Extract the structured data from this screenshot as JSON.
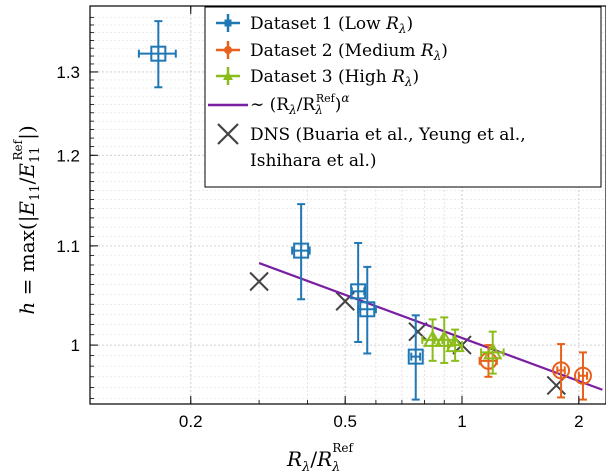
{
  "chart_data": {
    "type": "scatter",
    "xscale": "log",
    "yscale": "log",
    "xlim": [
      0.11,
      2.35
    ],
    "ylim": [
      0.945,
      1.385
    ],
    "xticks": [
      {
        "value": 0.2,
        "label": "0.2"
      },
      {
        "value": 0.5,
        "label": "0.5"
      },
      {
        "value": 1,
        "label": "1"
      },
      {
        "value": 2,
        "label": "2"
      }
    ],
    "yticks": [
      {
        "value": 1,
        "label": "1"
      },
      {
        "value": 1.1,
        "label": "1.1"
      },
      {
        "value": 1.2,
        "label": "1.2"
      },
      {
        "value": 1.3,
        "label": "1.3"
      }
    ],
    "xlabel": "R_λ / R_λ^Ref",
    "ylabel": "h = max(|E11 / E11^Ref|)",
    "grid": true,
    "legend_position": "top-right",
    "series": [
      {
        "name": "Dataset 1 (Low R_λ)",
        "color": "#1f77b4",
        "marker": "square",
        "points": [
          {
            "x": 0.165,
            "y": 1.323,
            "xerr": 0.018,
            "yerr": 0.042
          },
          {
            "x": 0.385,
            "y": 1.095,
            "xerr": 0.02,
            "yerr": 0.05
          },
          {
            "x": 0.54,
            "y": 1.053,
            "xerr": 0.02,
            "yerr": 0.05
          },
          {
            "x": 0.57,
            "y": 1.035,
            "xerr": 0.03,
            "yerr": 0.043
          },
          {
            "x": 0.76,
            "y": 0.989,
            "xerr": 0.02,
            "yerr": 0.04
          }
        ]
      },
      {
        "name": "Dataset 2 (Medium R_λ)",
        "color": "#e8601c",
        "marker": "circle",
        "points": [
          {
            "x": 1.17,
            "y": 0.985,
            "xerr": 0.06,
            "yerr": 0.015
          },
          {
            "x": 1.8,
            "y": 0.976,
            "xerr": 0.04,
            "yerr": 0.025
          },
          {
            "x": 2.05,
            "y": 0.971,
            "xerr": 0.05,
            "yerr": 0.022
          }
        ]
      },
      {
        "name": "Dataset 3 (High R_λ)",
        "color": "#8bbd1a",
        "marker": "triangle",
        "points": [
          {
            "x": 0.84,
            "y": 1.005,
            "xerr": 0.05,
            "yerr": 0.02
          },
          {
            "x": 0.9,
            "y": 1.005,
            "xerr": 0.05,
            "yerr": 0.022
          },
          {
            "x": 0.96,
            "y": 1.0,
            "xerr": 0.04,
            "yerr": 0.015
          },
          {
            "x": 1.2,
            "y": 0.993,
            "xerr": 0.08,
            "yerr": 0.02
          }
        ]
      },
      {
        "name": "∼ (R_λ / R_λ^Ref)^α",
        "color": "#7b1fa2",
        "type": "line",
        "points": [
          {
            "x": 0.3,
            "y": 1.082
          },
          {
            "x": 2.3,
            "y": 0.958
          }
        ]
      },
      {
        "name": "DNS (Buaria et al., Yeung et al., Ishihara et al.)",
        "color": "#444444",
        "marker": "x",
        "points": [
          {
            "x": 0.3,
            "y": 1.063
          },
          {
            "x": 0.5,
            "y": 1.043
          },
          {
            "x": 0.77,
            "y": 1.013
          },
          {
            "x": 1.0,
            "y": 1.0
          },
          {
            "x": 1.75,
            "y": 0.962
          }
        ]
      }
    ],
    "legend": [
      {
        "kind": "errorbar",
        "color": "#1f77b4",
        "marker": "square",
        "text": "Dataset 1 (Low ",
        "math": "R",
        "sub": "λ",
        "close": ")"
      },
      {
        "kind": "errorbar",
        "color": "#e8601c",
        "marker": "circle",
        "text": "Dataset 2 (Medium ",
        "math": "R",
        "sub": "λ",
        "close": ")"
      },
      {
        "kind": "errorbar",
        "color": "#8bbd1a",
        "marker": "triangle",
        "text": "Dataset 3 (High ",
        "math": "R",
        "sub": "λ",
        "close": ")"
      },
      {
        "kind": "line",
        "color": "#7b1fa2",
        "text": "∼ (R",
        "sub": "λ",
        "text2": "/R",
        "sub2": "λ",
        "sup2": "Ref",
        "close": ")",
        "sup3": "α"
      },
      {
        "kind": "x",
        "color": "#444444",
        "lines": [
          "DNS (Buaria et al., Yeung et al.,",
          " Ishihara et al.)"
        ]
      }
    ]
  }
}
